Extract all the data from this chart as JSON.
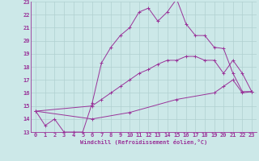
{
  "xlabel": "Windchill (Refroidissement éolien,°C)",
  "bg_color": "#cce8e8",
  "grid_color": "#b0d0d0",
  "line_color": "#993399",
  "xlim": [
    -0.5,
    23.5
  ],
  "ylim": [
    13,
    23
  ],
  "xticks": [
    0,
    1,
    2,
    3,
    4,
    5,
    6,
    7,
    8,
    9,
    10,
    11,
    12,
    13,
    14,
    15,
    16,
    17,
    18,
    19,
    20,
    21,
    22,
    23
  ],
  "yticks": [
    13,
    14,
    15,
    16,
    17,
    18,
    19,
    20,
    21,
    22,
    23
  ],
  "line1_x": [
    0,
    1,
    2,
    3,
    4,
    5,
    6,
    7,
    8,
    9,
    10,
    11,
    12,
    13,
    14,
    15,
    16,
    17,
    18,
    19,
    20,
    21,
    22,
    23
  ],
  "line1_y": [
    14.6,
    13.5,
    14.0,
    13.0,
    13.0,
    13.0,
    15.2,
    18.3,
    19.5,
    20.4,
    21.0,
    22.2,
    22.5,
    21.5,
    22.2,
    23.2,
    21.3,
    20.4,
    20.4,
    19.5,
    19.4,
    17.5,
    16.1,
    16.1
  ],
  "line2_x": [
    0,
    6,
    7,
    8,
    9,
    10,
    11,
    12,
    13,
    14,
    15,
    16,
    17,
    18,
    19,
    20,
    21,
    22,
    23
  ],
  "line2_y": [
    14.6,
    15.0,
    15.5,
    16.0,
    16.5,
    17.0,
    17.5,
    17.8,
    18.2,
    18.5,
    18.5,
    18.8,
    18.8,
    18.5,
    18.5,
    17.5,
    18.5,
    17.5,
    16.1
  ],
  "line3_x": [
    0,
    6,
    10,
    15,
    19,
    20,
    21,
    22,
    23
  ],
  "line3_y": [
    14.6,
    14.0,
    14.5,
    15.5,
    16.0,
    16.5,
    17.0,
    16.0,
    16.1
  ]
}
